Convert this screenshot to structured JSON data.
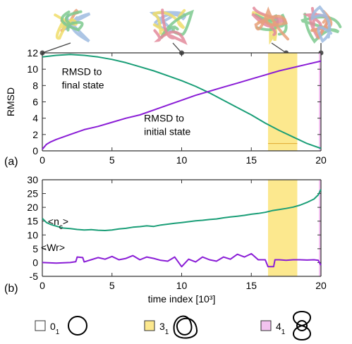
{
  "colors": {
    "teal": "#1a9e77",
    "purple": "#8a1dd6",
    "knot31_band": "#fce88e",
    "knot41_band": "#f2c2ef",
    "axis": "#333333",
    "marker": "#555555"
  },
  "panel_labels": [
    "(a)",
    "(b)"
  ],
  "icons": [
    "chain-snapshot-1",
    "chain-snapshot-2",
    "chain-snapshot-3",
    "chain-snapshot-4",
    "unknot-circle-icon",
    "trefoil-knot-icon",
    "figure-eight-knot-icon"
  ],
  "legend": [
    {
      "symbol": "0",
      "sub": "1",
      "swatch": "#ffffff",
      "icon": "unknot-circle-icon"
    },
    {
      "symbol": "3",
      "sub": "1",
      "swatch": "#fce88e",
      "icon": "trefoil-knot-icon"
    },
    {
      "symbol": "4",
      "sub": "1",
      "swatch": "#f2c2ef",
      "icon": "figure-eight-knot-icon"
    }
  ],
  "chart_data": [
    {
      "type": "line",
      "ylabel": "RMSD",
      "xlim": [
        0,
        20
      ],
      "ylim": [
        0,
        12
      ],
      "xticks": [
        0,
        5,
        10,
        15,
        20
      ],
      "yticks": [
        0,
        2,
        4,
        6,
        8,
        10,
        12
      ],
      "snapshot_times": [
        0,
        10,
        17.5,
        20
      ],
      "bands": [
        {
          "knot": "3_1",
          "x0": 16.2,
          "x1": 18.3
        },
        {
          "knot": "4_1",
          "x0": 19.85,
          "x1": 20
        }
      ],
      "series": [
        {
          "name": "RMSD to final state",
          "color": "#1a9e77",
          "x": [
            0,
            0.5,
            1,
            2,
            3,
            4,
            5,
            6,
            7,
            8,
            9,
            10,
            11,
            12,
            13,
            14,
            15,
            16,
            17,
            18,
            19,
            19.5,
            20
          ],
          "y": [
            11.5,
            11.6,
            11.7,
            11.8,
            11.7,
            11.5,
            11.2,
            10.8,
            10.3,
            9.8,
            9.2,
            8.6,
            7.9,
            7.1,
            6.2,
            5.3,
            4.4,
            3.4,
            2.5,
            1.7,
            0.9,
            0.6,
            0.3
          ]
        },
        {
          "name": "RMSD to initial state",
          "color": "#8a1dd6",
          "x": [
            0,
            0.3,
            0.6,
            1,
            2,
            3,
            4,
            5,
            6,
            7,
            8,
            9,
            10,
            11,
            12,
            13,
            14,
            15,
            16,
            17,
            18,
            19,
            20
          ],
          "y": [
            0.2,
            0.8,
            1.1,
            1.4,
            2.0,
            2.6,
            3.0,
            3.5,
            4.0,
            4.4,
            5.0,
            5.6,
            6.2,
            6.8,
            7.3,
            7.8,
            8.3,
            8.8,
            9.3,
            9.8,
            10.2,
            10.6,
            11.0
          ]
        }
      ],
      "annotations": [
        {
          "text": [
            "RMSD to",
            "final state"
          ],
          "x": 1.4,
          "y": 9.3
        },
        {
          "text": [
            "RMSD to",
            "initial state"
          ],
          "x": 7.3,
          "y": 3.6
        }
      ]
    },
    {
      "type": "line",
      "xlabel": "time index [10³]",
      "xlim": [
        0,
        20
      ],
      "ylim": [
        -5,
        30
      ],
      "xticks": [
        0,
        5,
        10,
        15,
        20
      ],
      "yticks": [
        -5,
        0,
        5,
        10,
        15,
        20,
        25,
        30
      ],
      "bands": [
        {
          "knot": "3_1",
          "x0": 16.2,
          "x1": 18.3
        },
        {
          "knot": "4_1",
          "x0": 19.85,
          "x1": 20
        }
      ],
      "series": [
        {
          "name": "<nc>",
          "color": "#1a9e77",
          "x": [
            0,
            0.3,
            0.6,
            1,
            1.5,
            2,
            2.5,
            3,
            3.5,
            4,
            4.5,
            5,
            5.5,
            6,
            6.5,
            7,
            7.5,
            8,
            8.5,
            9,
            9.5,
            10,
            10.5,
            11,
            11.5,
            12,
            12.5,
            13,
            13.5,
            14,
            14.5,
            15,
            15.5,
            16,
            16.5,
            17,
            17.5,
            18,
            18.5,
            19,
            19.5,
            19.8,
            20
          ],
          "y": [
            16,
            14.5,
            13.8,
            13.2,
            12.5,
            12.3,
            12.0,
            11.8,
            11.9,
            11.7,
            11.6,
            11.8,
            12.2,
            12.4,
            12.8,
            13.0,
            13.3,
            13.1,
            13.6,
            13.9,
            14.2,
            14.5,
            14.8,
            15.1,
            15.3,
            15.6,
            15.8,
            16.2,
            16.5,
            16.8,
            17.1,
            17.5,
            17.8,
            18.2,
            18.8,
            19.2,
            19.6,
            20.1,
            20.8,
            21.8,
            23.0,
            24.5,
            26.5
          ]
        },
        {
          "name": "<Wr>",
          "color": "#8a1dd6",
          "x": [
            0,
            1,
            2,
            2.4,
            2.5,
            2.9,
            3.0,
            3.5,
            4,
            4.5,
            5,
            5.5,
            6,
            6.5,
            7,
            7.5,
            8,
            8.5,
            9,
            9.5,
            10,
            10.5,
            11,
            11.5,
            12,
            12.5,
            13,
            13.5,
            14,
            14.5,
            15,
            15.5,
            16,
            16.2,
            16.3,
            16.6,
            16.7,
            17,
            17.5,
            18,
            18.5,
            19,
            19.5,
            19.8,
            20
          ],
          "y": [
            0,
            -0.2,
            0,
            0.3,
            2.0,
            1.8,
            0.2,
            1.0,
            1.8,
            1.2,
            2.2,
            1.0,
            1.5,
            2.5,
            1.0,
            2.0,
            1.5,
            0.8,
            0.5,
            2.0,
            -1.5,
            1.2,
            0.2,
            2.0,
            1.0,
            0.5,
            2.0,
            1.2,
            3.0,
            2.0,
            3.2,
            1.0,
            1.0,
            -1.5,
            -1.5,
            -1.5,
            1.0,
            1.0,
            0.8,
            1.0,
            1.0,
            0.9,
            1.0,
            0.8,
            -1.0
          ]
        }
      ],
      "annotations": [
        {
          "text": [
            "<n",
            "c",
            ">"
          ],
          "x": 0.4,
          "y": 13.6
        },
        {
          "text": [
            "<Wr>"
          ],
          "x": -0.1,
          "y": 4.2
        }
      ]
    }
  ]
}
